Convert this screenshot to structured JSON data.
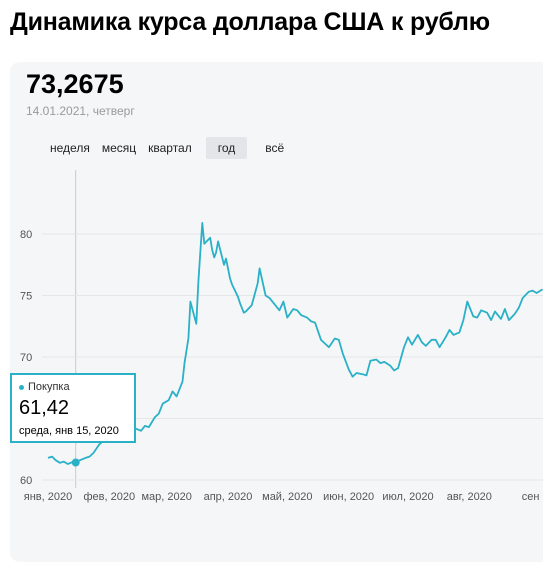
{
  "title": "Динамика курса доллара США к рублю",
  "header": {
    "rate": "73,2675",
    "date": "14.01.2021, четверг"
  },
  "tabs": [
    "неделя",
    "месяц",
    "квартал",
    "год",
    "всё"
  ],
  "active_tab": "год",
  "tooltip": {
    "series": "Покупка",
    "value": "61,42",
    "date": "среда, янв 15, 2020"
  },
  "colors": {
    "line": "#2ab0c7",
    "grid": "#e4e6e8",
    "crosshair": "#c8cacd"
  },
  "chart_data": {
    "type": "line",
    "y_ticks": [
      60,
      65,
      70,
      75,
      80
    ],
    "ylim": [
      60,
      84
    ],
    "x_ticks": [
      "янв, 2020",
      "фев, 2020",
      "мар, 2020",
      "апр, 2020",
      "май, 2020",
      "июн, 2020",
      "июл, 2020",
      "авг, 2020",
      "сен"
    ],
    "x_tick_days": [
      0,
      31,
      60,
      91,
      121,
      152,
      182,
      213,
      244
    ],
    "series": [
      {
        "name": "Покупка",
        "x": [
          "2020-01-01",
          "2020-01-03",
          "2020-01-05",
          "2020-01-07",
          "2020-01-09",
          "2020-01-11",
          "2020-01-14",
          "2020-01-15",
          "2020-01-17",
          "2020-01-20",
          "2020-01-22",
          "2020-01-24",
          "2020-01-27",
          "2020-01-29",
          "2020-01-31",
          "2020-02-03",
          "2020-02-05",
          "2020-02-07",
          "2020-02-10",
          "2020-02-12",
          "2020-02-14",
          "2020-02-17",
          "2020-02-19",
          "2020-02-21",
          "2020-02-24",
          "2020-02-26",
          "2020-02-28",
          "2020-03-02",
          "2020-03-04",
          "2020-03-06",
          "2020-03-09",
          "2020-03-10",
          "2020-03-12",
          "2020-03-13",
          "2020-03-16",
          "2020-03-17",
          "2020-03-18",
          "2020-03-19",
          "2020-03-20",
          "2020-03-23",
          "2020-03-24",
          "2020-03-25",
          "2020-03-26",
          "2020-03-27",
          "2020-03-30",
          "2020-03-31",
          "2020-04-02",
          "2020-04-03",
          "2020-04-06",
          "2020-04-07",
          "2020-04-09",
          "2020-04-10",
          "2020-04-13",
          "2020-04-14",
          "2020-04-16",
          "2020-04-17",
          "2020-04-20",
          "2020-04-22",
          "2020-04-24",
          "2020-04-27",
          "2020-04-29",
          "2020-05-01",
          "2020-05-04",
          "2020-05-06",
          "2020-05-08",
          "2020-05-11",
          "2020-05-13",
          "2020-05-15",
          "2020-05-18",
          "2020-05-20",
          "2020-05-22",
          "2020-05-25",
          "2020-05-27",
          "2020-05-29",
          "2020-06-01",
          "2020-06-03",
          "2020-06-05",
          "2020-06-08",
          "2020-06-10",
          "2020-06-12",
          "2020-06-15",
          "2020-06-17",
          "2020-06-19",
          "2020-06-22",
          "2020-06-24",
          "2020-06-26",
          "2020-06-29",
          "2020-07-01",
          "2020-07-03",
          "2020-07-06",
          "2020-07-08",
          "2020-07-10",
          "2020-07-13",
          "2020-07-15",
          "2020-07-17",
          "2020-07-20",
          "2020-07-22",
          "2020-07-24",
          "2020-07-27",
          "2020-07-29",
          "2020-07-31",
          "2020-08-03",
          "2020-08-05",
          "2020-08-07",
          "2020-08-10",
          "2020-08-12",
          "2020-08-14",
          "2020-08-17",
          "2020-08-19",
          "2020-08-21",
          "2020-08-24",
          "2020-08-26",
          "2020-08-28",
          "2020-08-31",
          "2020-09-02",
          "2020-09-04",
          "2020-09-07"
        ],
        "values": [
          61.8,
          61.9,
          61.6,
          61.4,
          61.5,
          61.3,
          61.5,
          61.42,
          61.6,
          61.8,
          61.9,
          62.2,
          62.9,
          63.2,
          63.5,
          63.9,
          63.6,
          63.8,
          63.9,
          63.7,
          64.2,
          64.0,
          64.4,
          64.3,
          65.1,
          65.4,
          66.2,
          66.5,
          67.2,
          66.8,
          68.0,
          69.5,
          71.5,
          74.5,
          72.7,
          76.0,
          78.5,
          80.9,
          79.2,
          79.7,
          78.7,
          78.1,
          78.5,
          79.4,
          77.5,
          78.0,
          76.4,
          75.9,
          74.9,
          74.4,
          73.6,
          73.7,
          74.2,
          74.8,
          76.0,
          77.2,
          75.0,
          74.8,
          74.4,
          73.8,
          74.5,
          73.2,
          73.9,
          73.8,
          73.4,
          73.2,
          72.9,
          72.8,
          71.4,
          71.1,
          70.8,
          71.5,
          71.4,
          70.3,
          69.0,
          68.4,
          68.7,
          68.6,
          68.5,
          69.7,
          69.8,
          69.5,
          69.6,
          69.3,
          68.9,
          69.1,
          70.8,
          71.6,
          71.0,
          71.8,
          71.2,
          70.9,
          71.4,
          71.4,
          70.8,
          71.6,
          72.2,
          71.8,
          72.0,
          73.0,
          74.5,
          73.3,
          73.2,
          73.8,
          73.6,
          73.0,
          73.7,
          73.1,
          73.9,
          73.0,
          73.5,
          74.0,
          74.8,
          75.3,
          75.4,
          75.2,
          75.5
        ]
      }
    ],
    "highlight": {
      "x": "2020-01-15",
      "value": 61.42
    }
  }
}
